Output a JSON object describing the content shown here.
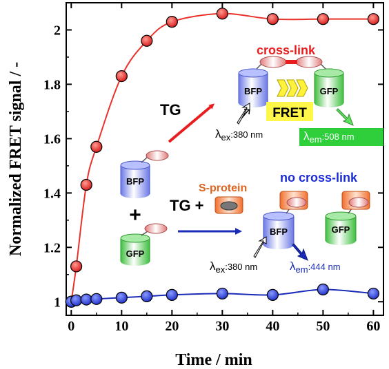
{
  "chart_data": {
    "type": "scatter",
    "xlabel": "Time / min",
    "ylabel": "Normalized FRET signal / -",
    "xlim": [
      -1,
      62
    ],
    "ylim": [
      0.95,
      2.1
    ],
    "xticks": [
      0,
      10,
      20,
      30,
      40,
      50,
      60
    ],
    "yticks": [
      1,
      1.2,
      1.4,
      1.6,
      1.8,
      2
    ],
    "xtick_labels": [
      "0",
      "10",
      "20",
      "30",
      "40",
      "50",
      "60"
    ],
    "ytick_labels": [
      "1",
      "1.2",
      "1.4",
      "1.6",
      "1.8",
      "2"
    ],
    "grid": false,
    "series": [
      {
        "color": "#e8322b",
        "line_color": "#e8322b",
        "x": [
          0,
          1,
          3,
          5,
          10,
          15,
          20,
          30,
          40,
          50,
          60
        ],
        "y": [
          1.0,
          1.13,
          1.43,
          1.57,
          1.83,
          1.96,
          2.03,
          2.06,
          2.04,
          2.04,
          2.04
        ]
      },
      {
        "color": "#2a3bd6",
        "line_color": "#1a2bb8",
        "x": [
          0,
          1,
          3,
          5,
          10,
          15,
          20,
          30,
          40,
          50,
          60
        ],
        "y": [
          1.0,
          1.005,
          1.008,
          1.01,
          1.015,
          1.02,
          1.025,
          1.03,
          1.025,
          1.045,
          1.03
        ]
      }
    ],
    "annotations": {
      "cross_link": "cross-link",
      "no_cross_link": "no cross-link",
      "tg": "TG",
      "tg_plus": "TG +",
      "plus": "+",
      "s_protein": "S-protein",
      "fret": "FRET",
      "bfp": "BFP",
      "gfp": "GFP",
      "lambda": "λ",
      "ex": "ex",
      "em": "em",
      "ex_value": ":380 nm",
      "em_value_cross": ":508 nm",
      "em_value_nocross": ":444 nm"
    }
  },
  "colors": {
    "red_curve": "#e8322b",
    "blue_curve": "#1a2bb8",
    "cross_link_text": "#e81e1e",
    "no_cross_link_text": "#1a2bd6",
    "s_protein_text": "#e0641e",
    "fret_box": "#fff64a",
    "em_508_box": "#2ecf3a"
  }
}
